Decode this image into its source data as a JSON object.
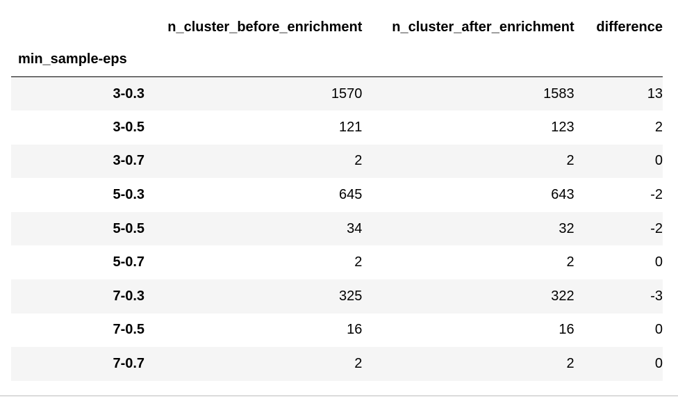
{
  "table": {
    "columns": [
      "n_cluster_before_enrichment",
      "n_cluster_after_enrichment",
      "difference"
    ],
    "index_name": "min_sample-eps",
    "rows": [
      {
        "index": "3-0.3",
        "values": [
          "1570",
          "1583",
          "13"
        ]
      },
      {
        "index": "3-0.5",
        "values": [
          "121",
          "123",
          "2"
        ]
      },
      {
        "index": "3-0.7",
        "values": [
          "2",
          "2",
          "0"
        ]
      },
      {
        "index": "5-0.3",
        "values": [
          "645",
          "643",
          "-2"
        ]
      },
      {
        "index": "5-0.5",
        "values": [
          "34",
          "32",
          "-2"
        ]
      },
      {
        "index": "5-0.7",
        "values": [
          "2",
          "2",
          "0"
        ]
      },
      {
        "index": "7-0.3",
        "values": [
          "325",
          "322",
          "-3"
        ]
      },
      {
        "index": "7-0.5",
        "values": [
          "16",
          "16",
          "0"
        ]
      },
      {
        "index": "7-0.7",
        "values": [
          "2",
          "2",
          "0"
        ]
      }
    ]
  }
}
